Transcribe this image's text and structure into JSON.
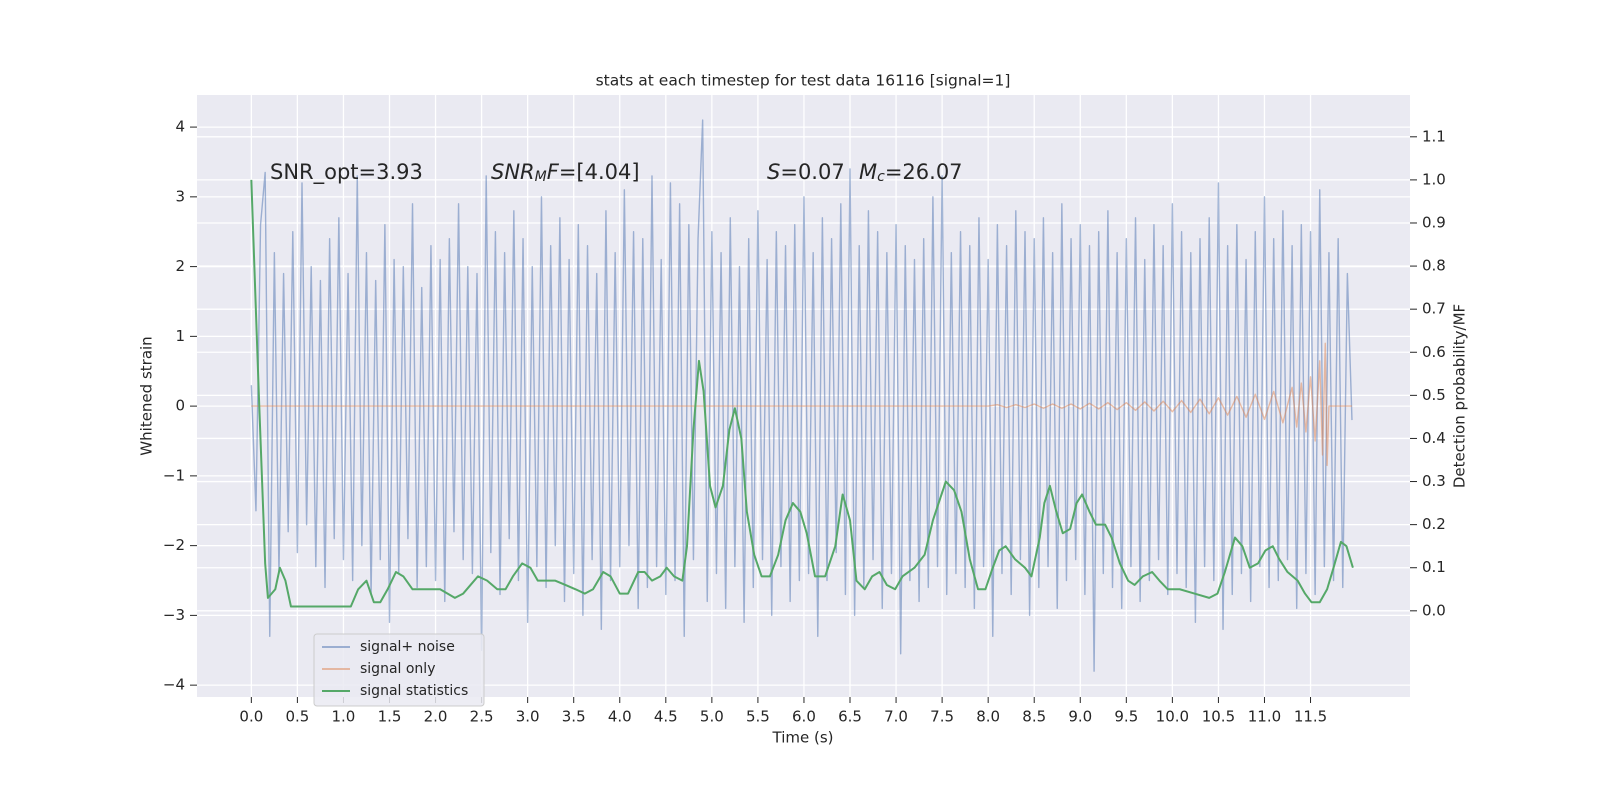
{
  "chart_data": {
    "type": "line",
    "title": "stats at each timestep for test data 16116 [signal=1]",
    "xlabel": "Time (s)",
    "ylabel": "Whitened strain",
    "y2label": "Detection probability/MF",
    "xlim": [
      -0.59,
      12.58
    ],
    "ylim": [
      -4.17,
      4.46
    ],
    "y2lim": [
      -0.2,
      1.197
    ],
    "xticks": [
      {
        "value": 0,
        "label": "0.0"
      },
      0.5,
      {
        "value": 1,
        "label": "1.0"
      },
      1.5,
      {
        "value": 2,
        "label": "2.0"
      },
      2.5,
      {
        "value": 3,
        "label": "3.0"
      },
      3.5,
      {
        "value": 4,
        "label": "4.0"
      },
      4.5,
      {
        "value": 5,
        "label": "5.0"
      },
      5.5,
      {
        "value": 6,
        "label": "6.0"
      },
      6.5,
      {
        "value": 7,
        "label": "7.0"
      },
      7.5,
      {
        "value": 8,
        "label": "8.0"
      },
      8.5,
      {
        "value": 9,
        "label": "9.0"
      },
      9.5,
      {
        "value": 10,
        "label": "10.0"
      },
      10.5,
      {
        "value": 11,
        "label": "11.0"
      },
      11.5
    ],
    "yticks": [
      {
        "value": -4,
        "label": "−4"
      },
      {
        "value": -3,
        "label": "−3"
      },
      {
        "value": -2,
        "label": "−2"
      },
      {
        "value": -1,
        "label": "−1"
      },
      0,
      1,
      2,
      3,
      4
    ],
    "y2ticks": [
      {
        "value": 0,
        "label": "0.0"
      },
      0.1,
      0.2,
      0.3,
      0.4,
      0.5,
      0.6,
      0.7,
      0.8,
      0.9,
      {
        "value": 1,
        "label": "1.0"
      },
      1.1
    ],
    "grid": true,
    "legend": "lower left",
    "annotations": [
      {
        "parts": [
          {
            "text": "SNR_opt=3.93"
          }
        ]
      },
      {
        "parts": [
          {
            "text": "SNR",
            "style": "italic"
          },
          {
            "text": "M",
            "style": "sub"
          },
          {
            "text": "F",
            "style": "italic"
          },
          {
            "text": "=[4.04]"
          }
        ]
      },
      {
        "parts": [
          {
            "text": "S",
            "style": "italic"
          },
          {
            "text": "=0.07"
          }
        ]
      },
      {
        "parts": [
          {
            "text": "M",
            "style": "italic"
          },
          {
            "text": "c",
            "style": "sub"
          },
          {
            "text": "=26.07"
          }
        ]
      }
    ],
    "series": [
      {
        "name": "signal+ noise",
        "color": "#4c72b0",
        "opacity": 0.5,
        "x": [
          0,
          0.05,
          0.1,
          0.15,
          0.2,
          0.25,
          0.3,
          0.35,
          0.4,
          0.45,
          0.5,
          0.55,
          0.6,
          0.65,
          0.7,
          0.75,
          0.8,
          0.85,
          0.9,
          0.95,
          1,
          1.05,
          1.1,
          1.15,
          1.2,
          1.25,
          1.3,
          1.35,
          1.4,
          1.45,
          1.5,
          1.55,
          1.6,
          1.65,
          1.7,
          1.75,
          1.8,
          1.85,
          1.9,
          1.95,
          2,
          2.05,
          2.1,
          2.15,
          2.2,
          2.25,
          2.3,
          2.35,
          2.4,
          2.45,
          2.5,
          2.55,
          2.6,
          2.65,
          2.7,
          2.75,
          2.8,
          2.85,
          2.9,
          2.95,
          3,
          3.05,
          3.1,
          3.15,
          3.2,
          3.25,
          3.3,
          3.35,
          3.4,
          3.45,
          3.5,
          3.55,
          3.6,
          3.65,
          3.7,
          3.75,
          3.8,
          3.85,
          3.9,
          3.95,
          4,
          4.05,
          4.1,
          4.15,
          4.2,
          4.25,
          4.3,
          4.35,
          4.4,
          4.45,
          4.5,
          4.55,
          4.6,
          4.65,
          4.7,
          4.75,
          4.8,
          4.85,
          4.9,
          4.95,
          5,
          5.05,
          5.1,
          5.15,
          5.2,
          5.25,
          5.3,
          5.35,
          5.4,
          5.45,
          5.5,
          5.55,
          5.6,
          5.65,
          5.7,
          5.75,
          5.8,
          5.85,
          5.9,
          5.95,
          6,
          6.05,
          6.1,
          6.15,
          6.2,
          6.25,
          6.3,
          6.35,
          6.4,
          6.45,
          6.5,
          6.55,
          6.6,
          6.65,
          6.7,
          6.75,
          6.8,
          6.85,
          6.9,
          6.95,
          7,
          7.05,
          7.1,
          7.15,
          7.2,
          7.25,
          7.3,
          7.35,
          7.4,
          7.45,
          7.5,
          7.55,
          7.6,
          7.65,
          7.7,
          7.75,
          7.8,
          7.85,
          7.9,
          7.95,
          8,
          8.05,
          8.1,
          8.15,
          8.2,
          8.25,
          8.3,
          8.35,
          8.4,
          8.45,
          8.5,
          8.55,
          8.6,
          8.65,
          8.7,
          8.75,
          8.8,
          8.85,
          8.9,
          8.95,
          9,
          9.05,
          9.1,
          9.15,
          9.2,
          9.25,
          9.3,
          9.35,
          9.4,
          9.45,
          9.5,
          9.55,
          9.6,
          9.65,
          9.7,
          9.75,
          9.8,
          9.85,
          9.9,
          9.95,
          10,
          10.05,
          10.1,
          10.15,
          10.2,
          10.25,
          10.3,
          10.35,
          10.4,
          10.45,
          10.5,
          10.55,
          10.6,
          10.65,
          10.7,
          10.75,
          10.8,
          10.85,
          10.9,
          10.95,
          11,
          11.05,
          11.1,
          11.15,
          11.2,
          11.25,
          11.3,
          11.35,
          11.4,
          11.45,
          11.5,
          11.55,
          11.6,
          11.65,
          11.7,
          11.75,
          11.8,
          11.85,
          11.9,
          11.95
        ],
        "values": [
          0.3,
          -1.5,
          2.6,
          3.35,
          -3.3,
          2.2,
          -2.4,
          1.9,
          -1.8,
          2.5,
          -2.1,
          3.2,
          -1.7,
          2.0,
          -2.3,
          1.8,
          -2.6,
          2.4,
          -1.9,
          2.7,
          -2.2,
          1.9,
          -2.5,
          3.3,
          -2.0,
          2.2,
          -2.7,
          1.8,
          -2.2,
          2.6,
          -3.1,
          2.1,
          -2.4,
          2.0,
          -1.9,
          2.9,
          -2.6,
          1.7,
          -2.3,
          2.3,
          -2.5,
          2.1,
          -2.8,
          2.4,
          -1.8,
          2.9,
          -2.2,
          2.0,
          -2.4,
          1.9,
          -3.5,
          3.3,
          -2.1,
          2.5,
          -2.7,
          2.2,
          -1.9,
          2.8,
          -2.5,
          2.4,
          -3.1,
          2.0,
          -2.3,
          3.0,
          -2.6,
          2.3,
          -2.0,
          2.7,
          -2.8,
          2.1,
          -2.4,
          2.6,
          -3.0,
          2.3,
          -2.2,
          1.9,
          -3.2,
          2.8,
          -2.5,
          2.2,
          -2.3,
          3.1,
          -2.0,
          2.5,
          -2.9,
          2.4,
          -2.6,
          3.3,
          -2.3,
          2.1,
          -2.7,
          3.2,
          -2.5,
          2.9,
          -3.3,
          2.6,
          -2.2,
          2.4,
          4.1,
          -2.8,
          2.5,
          -2.4,
          2.2,
          -2.9,
          2.7,
          -2.3,
          2.0,
          -3.1,
          2.4,
          -2.6,
          2.8,
          -2.2,
          2.1,
          -3.0,
          2.5,
          -2.3,
          2.3,
          -2.8,
          2.6,
          -2.5,
          3.0,
          -2.4,
          2.2,
          -3.3,
          2.7,
          -2.5,
          2.4,
          -2.1,
          2.9,
          -2.7,
          3.4,
          -3.0,
          2.3,
          -2.6,
          2.8,
          -2.2,
          2.5,
          -2.9,
          2.2,
          -2.4,
          2.6,
          -3.55,
          2.3,
          -2.5,
          2.1,
          -2.8,
          2.4,
          -2.6,
          3.0,
          -2.3,
          3.3,
          -2.7,
          2.2,
          -2.4,
          2.5,
          -2.6,
          2.3,
          -2.9,
          2.7,
          -2.3,
          2.1,
          -3.3,
          2.6,
          -2.4,
          2.3,
          -2.7,
          2.8,
          -2.2,
          2.5,
          -3.0,
          2.4,
          -2.6,
          2.7,
          -2.3,
          2.2,
          -2.9,
          2.9,
          -2.5,
          2.4,
          -2.2,
          2.6,
          -2.7,
          2.3,
          -3.8,
          2.5,
          -2.4,
          2.8,
          -2.6,
          2.2,
          -2.9,
          2.4,
          -2.3,
          2.7,
          -2.8,
          2.1,
          -2.5,
          2.6,
          -2.2,
          2.3,
          -2.7,
          2.9,
          -2.4,
          2.5,
          -2.6,
          2.2,
          -3.1,
          2.4,
          -2.3,
          2.7,
          -2.5,
          3.2,
          -3.2,
          2.3,
          -2.7,
          2.6,
          -2.4,
          2.1,
          -2.8,
          2.5,
          -2.3,
          3.0,
          -2.6,
          2.4,
          -2.5,
          2.8,
          -2.2,
          2.3,
          -2.9,
          2.6,
          -2.4,
          2.5,
          -2.7,
          3.1,
          -2.3,
          2.2,
          -2.5,
          2.4,
          -2.6,
          1.9,
          -0.2
        ]
      },
      {
        "name": "signal only",
        "color": "#dd8452",
        "opacity": 0.5,
        "x": [
          0,
          8.0,
          8.1,
          8.2,
          8.3,
          8.4,
          8.5,
          8.6,
          8.7,
          8.8,
          8.9,
          9.0,
          9.1,
          9.2,
          9.3,
          9.4,
          9.5,
          9.6,
          9.7,
          9.8,
          9.9,
          10.0,
          10.1,
          10.2,
          10.3,
          10.4,
          10.5,
          10.6,
          10.7,
          10.8,
          10.9,
          11.0,
          11.1,
          11.2,
          11.3,
          11.35,
          11.4,
          11.45,
          11.5,
          11.55,
          11.6,
          11.63,
          11.66,
          11.68,
          11.7,
          11.95
        ],
        "values": [
          0,
          0,
          0.02,
          -0.02,
          0.02,
          -0.02,
          0.03,
          -0.03,
          0.03,
          -0.03,
          0.03,
          -0.04,
          0.04,
          -0.04,
          0.05,
          -0.05,
          0.05,
          -0.06,
          0.06,
          -0.07,
          0.07,
          -0.08,
          0.08,
          -0.09,
          0.1,
          -0.11,
          0.12,
          -0.13,
          0.14,
          -0.16,
          0.17,
          -0.19,
          0.21,
          -0.24,
          0.27,
          -0.3,
          0.33,
          -0.37,
          0.42,
          -0.5,
          0.65,
          -0.7,
          0.9,
          -0.85,
          0,
          0
        ]
      },
      {
        "name": "signal statistics",
        "color": "#55a868",
        "opacity": 1,
        "axis": "y2",
        "x": [
          0,
          0.08,
          0.15,
          0.18,
          0.26,
          0.31,
          0.37,
          0.43,
          0.53,
          0.64,
          0.75,
          0.91,
          1.08,
          1.16,
          1.25,
          1.33,
          1.4,
          1.48,
          1.57,
          1.65,
          1.75,
          1.89,
          2.05,
          2.21,
          2.3,
          2.38,
          2.46,
          2.56,
          2.67,
          2.76,
          2.84,
          2.94,
          3.03,
          3.11,
          3.22,
          3.3,
          3.41,
          3.52,
          3.62,
          3.71,
          3.82,
          3.9,
          4.0,
          4.09,
          4.2,
          4.27,
          4.35,
          4.44,
          4.51,
          4.59,
          4.68,
          4.73,
          4.8,
          4.86,
          4.91,
          4.98,
          5.04,
          5.12,
          5.19,
          5.25,
          5.32,
          5.38,
          5.46,
          5.54,
          5.63,
          5.72,
          5.8,
          5.88,
          5.96,
          6.03,
          6.12,
          6.23,
          6.34,
          6.42,
          6.5,
          6.57,
          6.66,
          6.74,
          6.82,
          6.9,
          6.99,
          7.07,
          7.2,
          7.31,
          7.4,
          7.54,
          7.63,
          7.71,
          7.8,
          7.89,
          7.97,
          8.05,
          8.12,
          8.19,
          8.29,
          8.4,
          8.47,
          8.56,
          8.61,
          8.67,
          8.74,
          8.81,
          8.89,
          8.96,
          9.02,
          9.1,
          9.17,
          9.27,
          9.34,
          9.43,
          9.52,
          9.59,
          9.68,
          9.78,
          9.86,
          9.95,
          10.08,
          10.24,
          10.4,
          10.49,
          10.57,
          10.68,
          10.76,
          10.84,
          10.93,
          11.01,
          11.09,
          11.16,
          11.25,
          11.36,
          11.44,
          11.51,
          11.6,
          11.68,
          11.75,
          11.83,
          11.89,
          11.96
        ],
        "values": [
          1.0,
          0.51,
          0.11,
          0.03,
          0.05,
          0.1,
          0.07,
          0.01,
          0.01,
          0.01,
          0.01,
          0.01,
          0.01,
          0.05,
          0.07,
          0.02,
          0.02,
          0.05,
          0.09,
          0.08,
          0.05,
          0.05,
          0.05,
          0.03,
          0.04,
          0.06,
          0.08,
          0.07,
          0.05,
          0.05,
          0.08,
          0.11,
          0.1,
          0.07,
          0.07,
          0.07,
          0.06,
          0.05,
          0.04,
          0.05,
          0.09,
          0.08,
          0.04,
          0.04,
          0.09,
          0.09,
          0.07,
          0.08,
          0.1,
          0.08,
          0.07,
          0.15,
          0.42,
          0.58,
          0.51,
          0.29,
          0.24,
          0.29,
          0.42,
          0.47,
          0.4,
          0.23,
          0.13,
          0.08,
          0.08,
          0.13,
          0.21,
          0.25,
          0.23,
          0.18,
          0.08,
          0.08,
          0.15,
          0.27,
          0.21,
          0.07,
          0.05,
          0.08,
          0.09,
          0.06,
          0.05,
          0.08,
          0.1,
          0.13,
          0.21,
          0.3,
          0.28,
          0.23,
          0.12,
          0.05,
          0.05,
          0.1,
          0.14,
          0.15,
          0.12,
          0.1,
          0.08,
          0.17,
          0.25,
          0.29,
          0.23,
          0.18,
          0.19,
          0.25,
          0.27,
          0.23,
          0.2,
          0.2,
          0.17,
          0.11,
          0.07,
          0.06,
          0.08,
          0.09,
          0.07,
          0.05,
          0.05,
          0.04,
          0.03,
          0.04,
          0.09,
          0.17,
          0.15,
          0.1,
          0.11,
          0.14,
          0.15,
          0.12,
          0.09,
          0.07,
          0.04,
          0.02,
          0.02,
          0.05,
          0.1,
          0.16,
          0.15,
          0.1
        ]
      }
    ]
  }
}
